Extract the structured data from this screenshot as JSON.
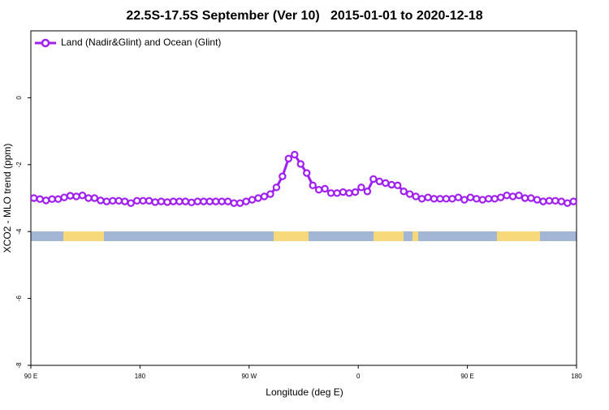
{
  "chart_data": {
    "type": "line",
    "title": "22.5S-17.5S September (Ver 10)   2015-01-01 to 2020-12-18",
    "xlabel": "Longitude (deg E)",
    "ylabel": "XCO2 - MLO trend (ppm)",
    "x": [
      92.5,
      97.5,
      102.5,
      107.5,
      112.5,
      117.5,
      122.5,
      127.5,
      132.5,
      137.5,
      142.5,
      147.5,
      152.5,
      157.5,
      162.5,
      167.5,
      172.5,
      177.5,
      182.5,
      187.5,
      192.5,
      197.5,
      202.5,
      207.5,
      212.5,
      217.5,
      222.5,
      227.5,
      232.5,
      237.5,
      242.5,
      247.5,
      252.5,
      257.5,
      262.5,
      267.5,
      272.5,
      277.5,
      282.5,
      287.5,
      292.5,
      297.5,
      302.5,
      307.5,
      312.5,
      317.5,
      322.5,
      327.5,
      332.5,
      337.5,
      342.5,
      347.5,
      352.5,
      357.5,
      362.5,
      367.5,
      372.5,
      377.5,
      382.5,
      387.5,
      392.5,
      397.5,
      402.5,
      407.5,
      412.5,
      417.5,
      422.5,
      427.5,
      432.5,
      437.5,
      442.5,
      447.5,
      452.5,
      457.5,
      462.5,
      467.5,
      472.5,
      477.5,
      482.5,
      487.5,
      492.5,
      497.5,
      502.5,
      507.5,
      512.5,
      517.5,
      522.5,
      527.5,
      532.5,
      537.5
    ],
    "series": [
      {
        "name": "Land (Nadir&Glint) and Ocean (Glint)",
        "color": "#a020f0",
        "values": [
          -3.0,
          -3.03,
          -3.07,
          -3.03,
          -3.03,
          -2.98,
          -2.93,
          -2.95,
          -2.92,
          -3.0,
          -3.0,
          -3.07,
          -3.1,
          -3.08,
          -3.08,
          -3.1,
          -3.15,
          -3.08,
          -3.08,
          -3.08,
          -3.12,
          -3.1,
          -3.12,
          -3.1,
          -3.1,
          -3.1,
          -3.13,
          -3.1,
          -3.1,
          -3.1,
          -3.1,
          -3.1,
          -3.1,
          -3.15,
          -3.15,
          -3.1,
          -3.05,
          -3.0,
          -2.95,
          -2.88,
          -2.68,
          -2.35,
          -1.82,
          -1.7,
          -1.98,
          -2.25,
          -2.62,
          -2.75,
          -2.72,
          -2.85,
          -2.85,
          -2.82,
          -2.85,
          -2.82,
          -2.68,
          -2.8,
          -2.43,
          -2.5,
          -2.55,
          -2.6,
          -2.62,
          -2.8,
          -2.88,
          -2.95,
          -3.02,
          -2.98,
          -3.02,
          -3.02,
          -3.02,
          -3.02,
          -2.98,
          -3.05,
          -2.98,
          -3.02,
          -3.05,
          -3.02,
          -3.02,
          -2.98,
          -2.92,
          -2.95,
          -2.92,
          -3.0,
          -3.0,
          -3.05,
          -3.1,
          -3.08,
          -3.08,
          -3.1,
          -3.15,
          -3.1
        ]
      }
    ],
    "xlim": [
      90,
      540
    ],
    "xticks": [
      {
        "value": 90,
        "label": "90 E"
      },
      180,
      {
        "value": 270,
        "label": "90 W"
      },
      {
        "value": 360,
        "label": "0"
      },
      {
        "value": 450,
        "label": "90 E"
      },
      180.0001
    ],
    "ylim": [
      -8,
      2
    ],
    "yticks": [
      0,
      -2,
      -4,
      -6,
      -8
    ],
    "legend": "top-left"
  }
}
